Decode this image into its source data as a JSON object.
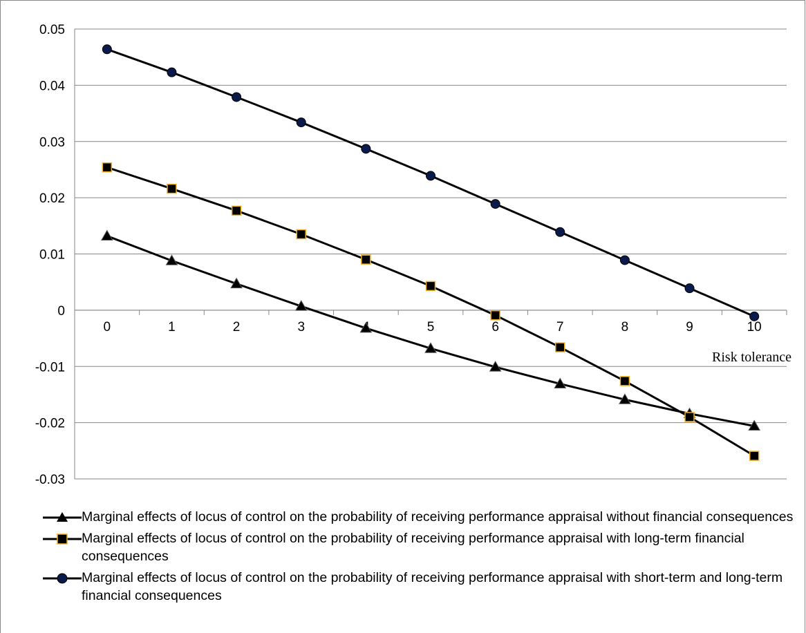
{
  "chart_data": {
    "type": "line",
    "xlabel": "Risk tolerance",
    "ylabel": "",
    "x": [
      0,
      1,
      2,
      3,
      4,
      5,
      6,
      7,
      8,
      9,
      10
    ],
    "x_tick_labels": [
      "0",
      "1",
      "2",
      "3",
      "4",
      "5",
      "6",
      "7",
      "8",
      "9",
      "10"
    ],
    "ylim": [
      -0.03,
      0.05
    ],
    "y_tick_labels": [
      "0.05",
      "0.04",
      "0.03",
      "0.02",
      "0.01",
      "0",
      "-0.01",
      "-0.02",
      "-0.03"
    ],
    "y_ticks": [
      0.05,
      0.04,
      0.03,
      0.02,
      0.01,
      0,
      -0.01,
      -0.02,
      -0.03
    ],
    "grid": "horizontal",
    "legend_position": "bottom",
    "series": [
      {
        "name": "Marginal effects of locus of control on the probability of receiving performance appraisal without financial consequences",
        "marker": "triangle",
        "marker_color": "#000000",
        "values": [
          0.0132,
          0.0088,
          0.0047,
          0.0007,
          -0.0032,
          -0.0068,
          -0.0101,
          -0.0131,
          -0.0159,
          -0.0184,
          -0.0206
        ]
      },
      {
        "name": "Marginal effects of locus of control on the probability of receiving performance appraisal with long-term financial consequences",
        "marker": "square",
        "marker_color": "#000000",
        "marker_edge": "#f0b020",
        "values": [
          0.0254,
          0.0216,
          0.0177,
          0.0135,
          0.009,
          0.0043,
          -0.0009,
          -0.0066,
          -0.0126,
          -0.019,
          -0.0259
        ]
      },
      {
        "name": "Marginal effects of locus of control on the probability of receiving performance appraisal with short-term and long-term financial consequences",
        "marker": "circle",
        "marker_color": "#0a1a4a",
        "values": [
          0.0464,
          0.0423,
          0.0379,
          0.0334,
          0.0287,
          0.0239,
          0.0189,
          0.0139,
          0.0089,
          0.0039,
          -0.0011
        ]
      }
    ]
  }
}
